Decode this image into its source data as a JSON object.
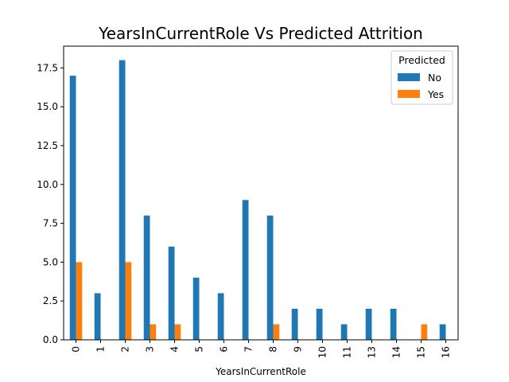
{
  "chart_data": {
    "type": "bar",
    "title": "YearsInCurrentRole Vs Predicted Attrition",
    "xlabel": "YearsInCurrentRole",
    "ylabel": "",
    "categories": [
      "0",
      "1",
      "2",
      "3",
      "4",
      "5",
      "6",
      "7",
      "8",
      "9",
      "10",
      "11",
      "13",
      "14",
      "15",
      "16"
    ],
    "series": [
      {
        "name": "No",
        "color": "#1f77b4",
        "values": [
          17,
          3,
          18,
          8,
          6,
          4,
          3,
          9,
          8,
          2,
          2,
          1,
          2,
          2,
          0,
          1
        ]
      },
      {
        "name": "Yes",
        "color": "#ff7f0e",
        "values": [
          5,
          0,
          5,
          1,
          1,
          0,
          0,
          0,
          1,
          0,
          0,
          0,
          0,
          0,
          1,
          0
        ]
      }
    ],
    "ylim": [
      0,
      18.9
    ],
    "yticks": [
      0.0,
      2.5,
      5.0,
      7.5,
      10.0,
      12.5,
      15.0,
      17.5
    ],
    "ytick_labels": [
      "0.0",
      "2.5",
      "5.0",
      "7.5",
      "10.0",
      "12.5",
      "15.0",
      "17.5"
    ],
    "grid": false,
    "legend": {
      "title": "Predicted",
      "placement": "top-right"
    }
  }
}
